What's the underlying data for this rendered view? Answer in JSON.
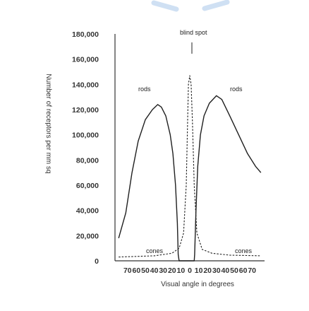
{
  "chart_data": {
    "type": "line",
    "title": "",
    "xlabel": "Visual angle in degrees",
    "ylabel": "Number of receptors per mm sq",
    "x_tick_labels": [
      "70",
      "60",
      "50",
      "40",
      "30",
      "20",
      "10",
      "0",
      "10",
      "20",
      "30",
      "40",
      "50",
      "60",
      "70"
    ],
    "x_values": [
      -70,
      -60,
      -50,
      -40,
      -30,
      -20,
      -10,
      0,
      10,
      20,
      30,
      40,
      50,
      60,
      70
    ],
    "y_tick_labels": [
      "0",
      "20,000",
      "40,000",
      "60,000",
      "80,000",
      "100,000",
      "120,000",
      "140,000",
      "160,000",
      "180,000"
    ],
    "ylim": [
      0,
      180000
    ],
    "xlim": [
      -80,
      80
    ],
    "grid": false,
    "series": [
      {
        "name": "rods",
        "style": "solid",
        "points": [
          [
            -80,
            18000
          ],
          [
            -72,
            38000
          ],
          [
            -65,
            70000
          ],
          [
            -58,
            95000
          ],
          [
            -50,
            112000
          ],
          [
            -42,
            120000
          ],
          [
            -36,
            124000
          ],
          [
            -32,
            122000
          ],
          [
            -27,
            115000
          ],
          [
            -22,
            100000
          ],
          [
            -19,
            85000
          ],
          [
            -16,
            60000
          ],
          [
            -14,
            30000
          ],
          [
            -13,
            5000
          ],
          [
            -12,
            0
          ],
          [
            -3,
            0
          ],
          [
            0,
            0
          ],
          [
            3,
            0
          ],
          [
            5,
            0
          ],
          [
            5.5,
            5000
          ],
          [
            7,
            40000
          ],
          [
            9,
            75000
          ],
          [
            12,
            100000
          ],
          [
            16,
            115000
          ],
          [
            22,
            125000
          ],
          [
            30,
            131000
          ],
          [
            36,
            128000
          ],
          [
            45,
            115000
          ],
          [
            55,
            100000
          ],
          [
            65,
            85000
          ],
          [
            74,
            75000
          ],
          [
            80,
            70000
          ]
        ]
      },
      {
        "name": "cones",
        "style": "dashed",
        "points": [
          [
            -80,
            3000
          ],
          [
            -60,
            3500
          ],
          [
            -40,
            4000
          ],
          [
            -20,
            6000
          ],
          [
            -12,
            10000
          ],
          [
            -7,
            22000
          ],
          [
            -4,
            60000
          ],
          [
            -2.5,
            110000
          ],
          [
            -1.5,
            140000
          ],
          [
            0,
            147000
          ],
          [
            1.5,
            140000
          ],
          [
            3,
            110000
          ],
          [
            5,
            60000
          ],
          [
            8,
            22000
          ],
          [
            14,
            9000
          ],
          [
            25,
            6000
          ],
          [
            45,
            4500
          ],
          [
            80,
            4000
          ]
        ]
      }
    ],
    "annotations": [
      {
        "text": "blind spot",
        "x": 8,
        "y": 170000
      },
      {
        "text": "rods",
        "x": -35,
        "y": 126000
      },
      {
        "text": "rods",
        "x": 55,
        "y": 126000
      },
      {
        "text": "cones",
        "x": -40,
        "y": 10000
      },
      {
        "text": "cones",
        "x": 60,
        "y": 10000
      }
    ],
    "colors": {
      "rods": "#1f1f1f",
      "cones": "#1f1f1f",
      "axis": "#333333",
      "decor": "#cfe0f3"
    }
  }
}
